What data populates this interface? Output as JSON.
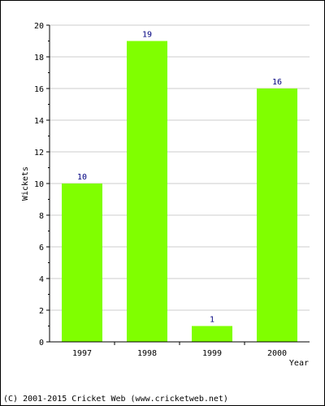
{
  "chart_data": {
    "type": "bar",
    "categories": [
      "1997",
      "1998",
      "1999",
      "2000"
    ],
    "values": [
      10,
      19,
      1,
      16
    ],
    "data_labels": [
      "10",
      "19",
      "1",
      "16"
    ],
    "title": "",
    "xlabel": "Year",
    "ylabel": "Wickets",
    "ylim": [
      0,
      20
    ],
    "y_ticks": [
      "0",
      "2",
      "4",
      "6",
      "8",
      "10",
      "12",
      "14",
      "16",
      "18",
      "20"
    ],
    "grid": true,
    "bar_color": "#80ff00",
    "label_color": "#000080",
    "grid_color": "#cccccc"
  },
  "footer": {
    "copyright": "(C) 2001-2015 Cricket Web (www.cricketweb.net)"
  }
}
